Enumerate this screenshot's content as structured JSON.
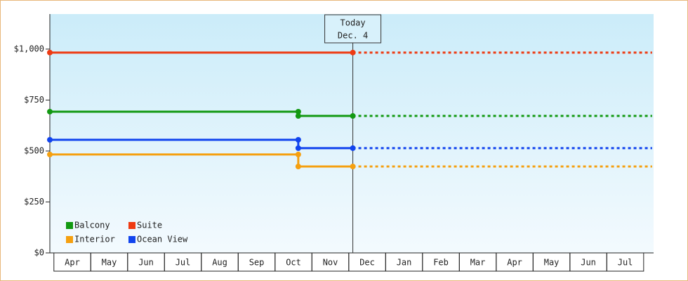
{
  "chart_data": {
    "type": "line",
    "categories": [
      "Apr",
      "May",
      "Jun",
      "Jul",
      "Aug",
      "Sep",
      "Oct",
      "Nov",
      "Dec",
      "Jan",
      "Feb",
      "Mar",
      "Apr",
      "May",
      "Jun",
      "Jul"
    ],
    "xlim": [
      -0.11,
      16.27
    ],
    "ylim": [
      0,
      1172
    ],
    "yticks": [
      {
        "value": 0,
        "label": "$0"
      },
      {
        "value": 250,
        "label": "$250"
      },
      {
        "value": 500,
        "label": "$500"
      },
      {
        "value": 750,
        "label": "$750"
      },
      {
        "value": 1000,
        "label": "$1,000"
      }
    ],
    "today": {
      "x": 8.11,
      "label": "Today",
      "date": "Dec. 4"
    },
    "legend": "lower left",
    "series": [
      {
        "name": "Balcony",
        "color": "#129912",
        "x": [
          -0.11,
          6.63,
          6.63,
          8.11,
          16.23
        ],
        "values": [
          693,
          693,
          672,
          672,
          672
        ]
      },
      {
        "name": "Suite",
        "color": "#ee3a12",
        "x": [
          -0.11,
          8.11,
          16.23
        ],
        "values": [
          983,
          983,
          983
        ]
      },
      {
        "name": "Interior",
        "color": "#f5a010",
        "x": [
          -0.11,
          6.63,
          6.63,
          8.11,
          16.23
        ],
        "values": [
          483,
          483,
          424,
          424,
          424
        ]
      },
      {
        "name": "Ocean View",
        "color": "#1144ee",
        "x": [
          -0.11,
          6.63,
          6.63,
          8.11,
          16.23
        ],
        "values": [
          555,
          555,
          514,
          514,
          514
        ]
      }
    ]
  }
}
